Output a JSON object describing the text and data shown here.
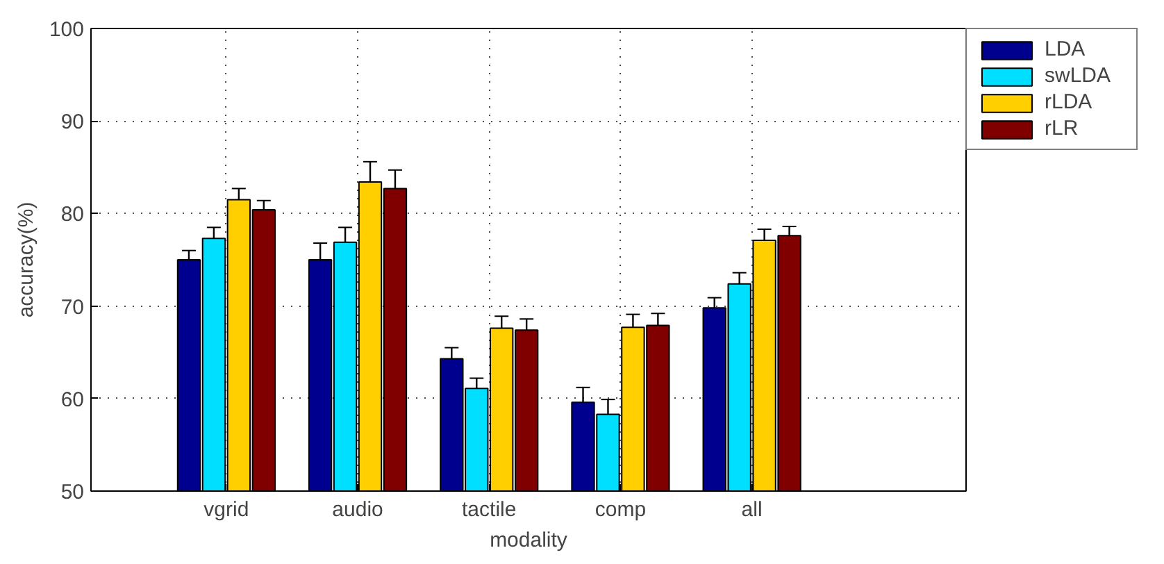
{
  "chart_data": {
    "type": "bar",
    "xlabel": "modality",
    "ylabel": "accuracy(%)",
    "categories": [
      "vgrid",
      "audio",
      "tactile",
      "comp",
      "all"
    ],
    "series": [
      {
        "name": "LDA",
        "color": "#00008f",
        "values": [
          75.0,
          75.0,
          64.3,
          59.6,
          69.8
        ],
        "errors": [
          1.0,
          1.8,
          1.2,
          1.6,
          1.1
        ]
      },
      {
        "name": "swLDA",
        "color": "#00dfff",
        "values": [
          77.3,
          76.9,
          61.1,
          58.3,
          72.4
        ],
        "errors": [
          1.2,
          1.6,
          1.1,
          1.6,
          1.2
        ]
      },
      {
        "name": "rLDA",
        "color": "#ffcf00",
        "values": [
          81.5,
          83.4,
          67.6,
          67.7,
          77.1
        ],
        "errors": [
          1.2,
          2.2,
          1.3,
          1.4,
          1.2
        ]
      },
      {
        "name": "rLR",
        "color": "#800000",
        "values": [
          80.4,
          82.7,
          67.4,
          67.9,
          77.6
        ],
        "errors": [
          1.0,
          2.0,
          1.2,
          1.3,
          1.0
        ]
      }
    ],
    "ylim": [
      50,
      100
    ],
    "yticks": [
      50,
      60,
      70,
      80,
      90,
      100
    ],
    "grid": true,
    "legend": "top right"
  }
}
